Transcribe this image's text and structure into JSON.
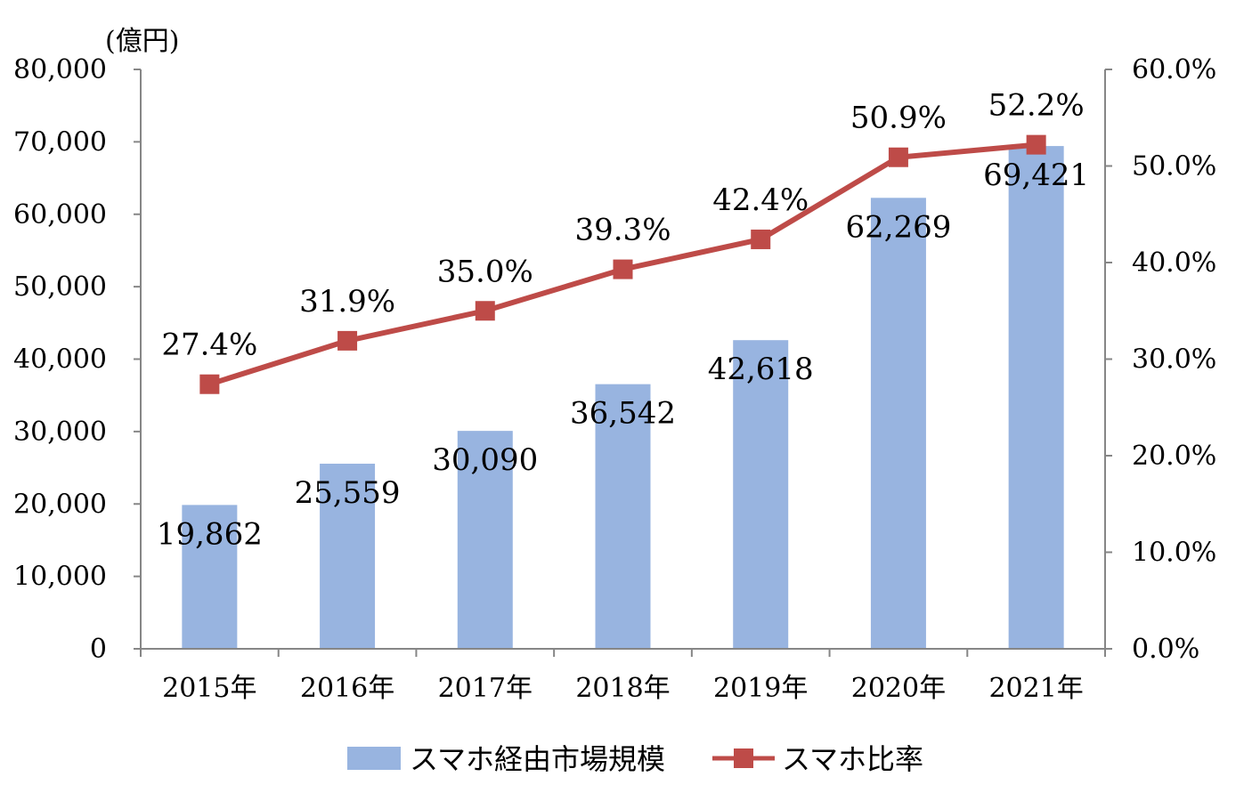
{
  "chart_data": {
    "type": "bar+line",
    "unit_label": "(億円)",
    "categories": [
      "2015年",
      "2016年",
      "2017年",
      "2018年",
      "2019年",
      "2020年",
      "2021年"
    ],
    "series": [
      {
        "name": "スマホ経由市場規模",
        "type": "bar",
        "axis": "left",
        "color": "#98b4e0",
        "values": [
          19862,
          25559,
          30090,
          36542,
          42618,
          62269,
          69421
        ],
        "labels": [
          "19,862",
          "25,559",
          "30,090",
          "36,542",
          "42,618",
          "62,269",
          "69,421"
        ]
      },
      {
        "name": "スマホ比率",
        "type": "line",
        "axis": "right",
        "color": "#be4b48",
        "values": [
          27.4,
          31.9,
          35.0,
          39.3,
          42.4,
          50.9,
          52.2
        ],
        "labels": [
          "27.4%",
          "31.9%",
          "35.0%",
          "39.3%",
          "42.4%",
          "50.9%",
          "52.2%"
        ]
      }
    ],
    "left_axis": {
      "ylim": [
        0,
        80000
      ],
      "ticks": [
        "0",
        "10,000",
        "20,000",
        "30,000",
        "40,000",
        "50,000",
        "60,000",
        "70,000",
        "80,000"
      ]
    },
    "right_axis": {
      "ylim": [
        0,
        60
      ],
      "ticks": [
        "0.0%",
        "10.0%",
        "20.0%",
        "30.0%",
        "40.0%",
        "50.0%",
        "60.0%"
      ]
    },
    "grid": false,
    "legend_position": "bottom"
  }
}
